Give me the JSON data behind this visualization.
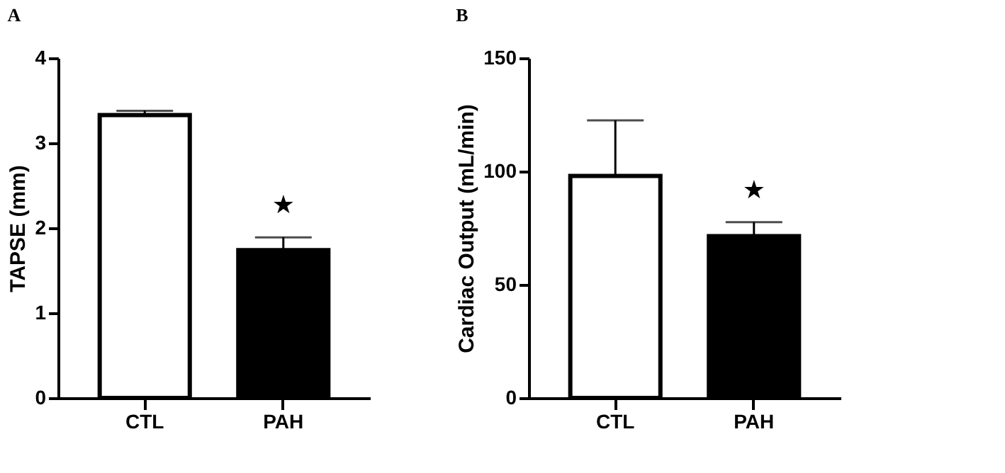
{
  "chart_data": [
    {
      "type": "bar",
      "title": "A",
      "ylabel": "TAPSE (mm)",
      "categories": [
        "CTL",
        "PAH"
      ],
      "values": [
        3.33,
        1.74
      ],
      "colors": [
        "#ffffff",
        "#000000"
      ],
      "errors": [
        [
          3.33,
          3.38
        ],
        [
          1.74,
          1.89
        ]
      ],
      "ylim": [
        0,
        4
      ],
      "yticks": [
        0,
        1,
        2,
        3,
        4
      ],
      "grid": false,
      "annotations": [
        "★"
      ]
    },
    {
      "type": "bar",
      "title": "B",
      "ylabel": "Cardiac Output (mL/min)",
      "categories": [
        "CTL",
        "PAH"
      ],
      "values": [
        98,
        71.4
      ],
      "colors": [
        "#ffffff",
        "#000000"
      ],
      "errors": [
        [
          98,
          122.5
        ],
        [
          71.4,
          77.6
        ]
      ],
      "ylim": [
        0,
        150
      ],
      "yticks": [
        0,
        50,
        100,
        150
      ],
      "grid": false,
      "annotations": [
        "★"
      ]
    }
  ]
}
